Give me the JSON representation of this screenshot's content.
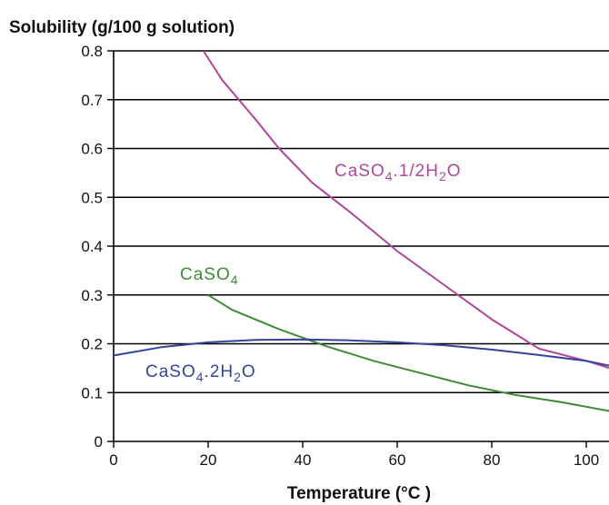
{
  "chart_data": {
    "type": "line",
    "ylabel": "Solubility (g/100 g solution)",
    "xlabel": "Temperature (°C )",
    "xlim": [
      0,
      105
    ],
    "ylim": [
      0,
      0.8
    ],
    "x_ticks": [
      "0",
      "20",
      "40",
      "60",
      "80",
      "100"
    ],
    "y_ticks": [
      "0",
      "0.1",
      "0.2",
      "0.3",
      "0.4",
      "0.5",
      "0.6",
      "0.7",
      "0.8"
    ],
    "grid": "horizontal",
    "series": [
      {
        "name": "CaSO4.1/2H2O",
        "name_parts": [
          "CaSO",
          "4",
          ".1/2H",
          "2",
          "O"
        ],
        "color": "#b0469a",
        "x": [
          19,
          23,
          30,
          35,
          42,
          50,
          60,
          70,
          80,
          90,
          100,
          105
        ],
        "y": [
          0.8,
          0.74,
          0.66,
          0.6,
          0.53,
          0.47,
          0.39,
          0.32,
          0.25,
          0.19,
          0.165,
          0.15
        ]
      },
      {
        "name": "CaSO4",
        "name_parts": [
          "CaSO",
          "4"
        ],
        "color": "#3f8a36",
        "x": [
          20,
          25,
          35,
          45,
          55,
          65,
          75,
          85,
          95,
          105
        ],
        "y": [
          0.3,
          0.27,
          0.23,
          0.195,
          0.165,
          0.14,
          0.115,
          0.095,
          0.08,
          0.062
        ]
      },
      {
        "name": "CaSO4.2H2O",
        "name_parts": [
          "CaSO",
          "4",
          ".2H",
          "2",
          "O"
        ],
        "color": "#33449a",
        "x": [
          0,
          10,
          20,
          30,
          40,
          50,
          60,
          70,
          80,
          90,
          100,
          105
        ],
        "y": [
          0.176,
          0.193,
          0.203,
          0.208,
          0.209,
          0.207,
          0.203,
          0.197,
          0.188,
          0.177,
          0.165,
          0.155
        ]
      }
    ]
  }
}
